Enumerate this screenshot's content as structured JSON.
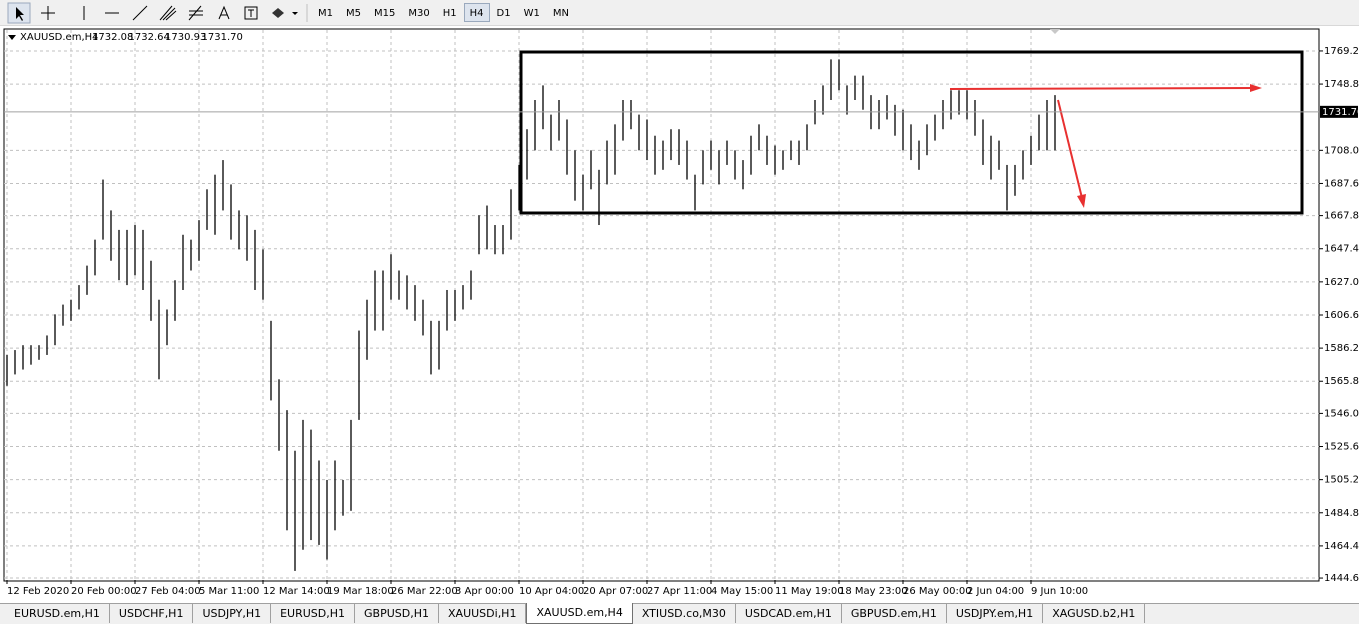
{
  "toolbar": {
    "timeframes": [
      "M1",
      "M5",
      "M15",
      "M30",
      "H1",
      "H4",
      "D1",
      "W1",
      "MN"
    ],
    "active": 5
  },
  "tabs": {
    "items": [
      "EURUSD.em,H1",
      "USDCHF,H1",
      "USDJPY,H1",
      "EURUSD,H1",
      "GBPUSD,H1",
      "XAUUSDi,H1",
      "XAUUSD.em,H4",
      "XTIUSD.co,M30",
      "USDCAD.em,H1",
      "GBPUSD.em,H1",
      "USDJPY.em,H1",
      "XAGUSD.b2,H1"
    ],
    "active": 6
  },
  "chart_data": {
    "type": "hlbar",
    "symbol": "XAUUSD.em,H4",
    "quote": [
      1732.08,
      1732.64,
      1730.93,
      {
        "value": 1731.7,
        "label": "1731.70"
      }
    ],
    "current_price": {
      "value": 1731.7,
      "label": "1731.70"
    },
    "color": "#000000",
    "grid": true,
    "ylim": [
      1443.4,
      1782.1
    ],
    "yticks": [
      {
        "value": 1769.2,
        "label": "1769.20"
      },
      {
        "value": 1748.8,
        "label": "1748.80"
      },
      {
        "value": 1708,
        "label": "1708.00"
      },
      {
        "value": 1687.6,
        "label": "1687.60"
      },
      {
        "value": 1667.8,
        "label": "1667.80"
      },
      {
        "value": 1647.4,
        "label": "1647.40"
      },
      {
        "value": 1627,
        "label": "1627.00"
      },
      {
        "value": 1606.6,
        "label": "1606.60"
      },
      {
        "value": 1586.2,
        "label": "1586.20"
      },
      {
        "value": 1565.8,
        "label": "1565.80"
      },
      {
        "value": 1546,
        "label": "1546.00"
      },
      {
        "value": 1525.6,
        "label": "1525.60"
      },
      {
        "value": 1505.2,
        "label": "1505.20"
      },
      {
        "value": 1484.8,
        "label": "1484.80"
      },
      {
        "value": 1464.4,
        "label": "1464.40"
      },
      {
        "value": 1444.6,
        "label": "1444.60"
      }
    ],
    "categories": [
      "12 Feb 2020",
      null,
      null,
      null,
      null,
      null,
      null,
      null,
      "20 Feb 00:00",
      null,
      null,
      null,
      null,
      null,
      null,
      null,
      "27 Feb 04:00",
      null,
      null,
      null,
      null,
      null,
      null,
      null,
      "5 Mar 11:00",
      null,
      null,
      null,
      null,
      null,
      null,
      null,
      "12 Mar 14:00",
      null,
      null,
      null,
      null,
      null,
      null,
      null,
      "19 Mar 18:00",
      null,
      null,
      null,
      null,
      null,
      null,
      null,
      "26 Mar 22:00",
      null,
      null,
      null,
      null,
      null,
      null,
      null,
      "3 Apr 00:00",
      null,
      null,
      null,
      null,
      null,
      null,
      null,
      "10 Apr 04:00",
      null,
      null,
      null,
      null,
      null,
      null,
      null,
      "20 Apr 07:00",
      null,
      null,
      null,
      null,
      null,
      null,
      null,
      "27 Apr 11:00",
      null,
      null,
      null,
      null,
      null,
      null,
      null,
      "4 May 15:00",
      null,
      null,
      null,
      null,
      null,
      null,
      null,
      "11 May 19:00",
      null,
      null,
      null,
      null,
      null,
      null,
      null,
      "18 May 23:00",
      null,
      null,
      null,
      null,
      null,
      null,
      null,
      "26 May 00:00",
      null,
      null,
      null,
      null,
      null,
      null,
      null,
      "2 Jun 04:00",
      null,
      null,
      null,
      null,
      null,
      null,
      null,
      "9 Jun 10:00",
      null,
      null,
      null
    ],
    "high": [
      1582,
      1585,
      1588,
      1588,
      1588,
      1594,
      1607,
      1613,
      1616,
      1625,
      1637,
      1653,
      1690,
      1671,
      1659,
      1659,
      1662,
      1659,
      1640,
      1616,
      1610,
      1628,
      1656,
      1653,
      1665,
      1684,
      1693,
      1702,
      1687,
      1671,
      1668,
      1659,
      1647,
      1603,
      1567,
      1548,
      1523,
      1542,
      1536,
      1517,
      1505,
      1517,
      1505,
      1542,
      1597,
      1616,
      1634,
      1634,
      1644,
      1634,
      1631,
      1625,
      1616,
      1603,
      1603,
      1622,
      1622,
      1625,
      1634,
      1668,
      1674,
      1662,
      1662,
      1684,
      1699,
      1721,
      1739,
      1748,
      1730,
      1739,
      1727,
      1708,
      1693,
      1708,
      1696,
      1714,
      1724,
      1739,
      1739,
      1730,
      1727,
      1717,
      1714,
      1721,
      1721,
      1714,
      1693,
      1708,
      1714,
      1708,
      1714,
      1708,
      1702,
      1717,
      1724,
      1717,
      1711,
      1708,
      1714,
      1714,
      1724,
      1739,
      1748,
      1764,
      1764,
      1748,
      1754,
      1754,
      1742,
      1739,
      1742,
      1736,
      1733,
      1724,
      1714,
      1724,
      1730,
      1739,
      1745,
      1745,
      1745,
      1739,
      1727,
      1717,
      1714,
      1699,
      1699,
      1708,
      1717,
      1730,
      1739,
      1742
    ],
    "low": [
      1563,
      1570,
      1573,
      1576,
      1579,
      1582,
      1588,
      1600,
      1603,
      1610,
      1619,
      1631,
      1653,
      1640,
      1628,
      1625,
      1631,
      1622,
      1603,
      1567,
      1588,
      1603,
      1622,
      1634,
      1640,
      1659,
      1656,
      1671,
      1653,
      1647,
      1640,
      1622,
      1616,
      1554,
      1523,
      1474,
      1449,
      1462,
      1468,
      1465,
      1456,
      1474,
      1483,
      1486,
      1542,
      1579,
      1597,
      1597,
      1616,
      1616,
      1610,
      1603,
      1594,
      1570,
      1573,
      1597,
      1603,
      1610,
      1616,
      1644,
      1647,
      1644,
      1644,
      1653,
      1671,
      1690,
      1708,
      1721,
      1708,
      1714,
      1693,
      1677,
      1671,
      1684,
      1662,
      1687,
      1693,
      1714,
      1721,
      1708,
      1702,
      1693,
      1696,
      1702,
      1699,
      1690,
      1671,
      1687,
      1696,
      1687,
      1699,
      1690,
      1684,
      1693,
      1708,
      1699,
      1693,
      1696,
      1702,
      1699,
      1708,
      1724,
      1730,
      1739,
      1745,
      1730,
      1739,
      1733,
      1721,
      1721,
      1727,
      1717,
      1708,
      1702,
      1696,
      1705,
      1714,
      1721,
      1727,
      1730,
      1727,
      1717,
      1699,
      1690,
      1696,
      1671,
      1680,
      1690,
      1699,
      1708,
      1708,
      1708
    ]
  }
}
